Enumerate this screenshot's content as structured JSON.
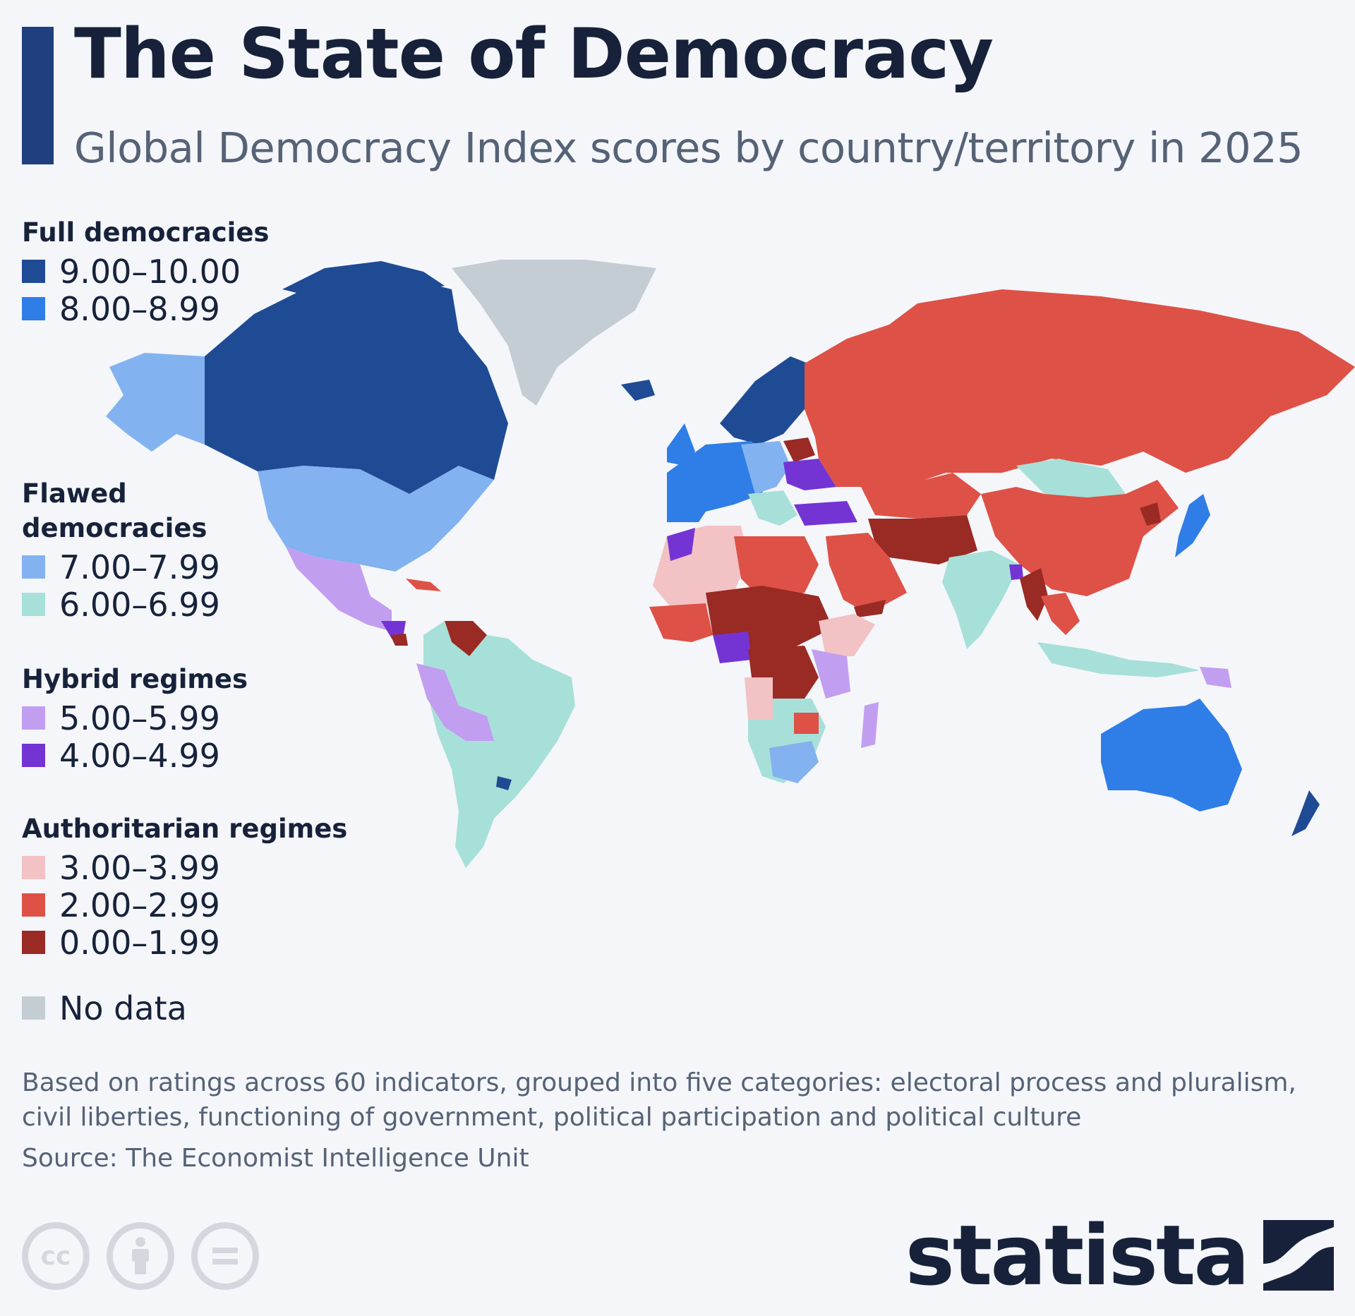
{
  "header": {
    "title": "The State of Democracy",
    "subtitle": "Global Democracy Index scores by country/territory in 2025"
  },
  "legend": {
    "groups": [
      {
        "heading": "Full democracies",
        "items": [
          {
            "label": "9.00–10.00",
            "color": "#1f4b94"
          },
          {
            "label": "8.00–8.99",
            "color": "#2f7de6"
          }
        ]
      },
      {
        "heading": "Flawed democracies",
        "items": [
          {
            "label": "7.00–7.99",
            "color": "#83b2f0"
          },
          {
            "label": "6.00–6.99",
            "color": "#a7e0d8"
          }
        ]
      },
      {
        "heading": "Hybrid regimes",
        "items": [
          {
            "label": "5.00–5.99",
            "color": "#c29ef0"
          },
          {
            "label": "4.00–4.99",
            "color": "#7434d4"
          }
        ]
      },
      {
        "heading": "Authoritarian regimes",
        "items": [
          {
            "label": "3.00–3.99",
            "color": "#f2c2c4"
          },
          {
            "label": "2.00–2.99",
            "color": "#de5146"
          },
          {
            "label": "0.00–1.99",
            "color": "#9a2a24"
          }
        ]
      }
    ],
    "no_data": {
      "label": "No data",
      "color": "#c4cdd3"
    }
  },
  "footer": {
    "note": "Based on ratings across 60 indicators, grouped into five categories: electoral process and pluralism, civil liberties, functioning of government, political participation and political culture",
    "source": "Source: The Economist Intelligence Unit",
    "license_icons": [
      "cc-icon",
      "attribution-icon",
      "no-derivatives-icon"
    ],
    "license_cc_text": "cc",
    "brand": "statista"
  }
}
